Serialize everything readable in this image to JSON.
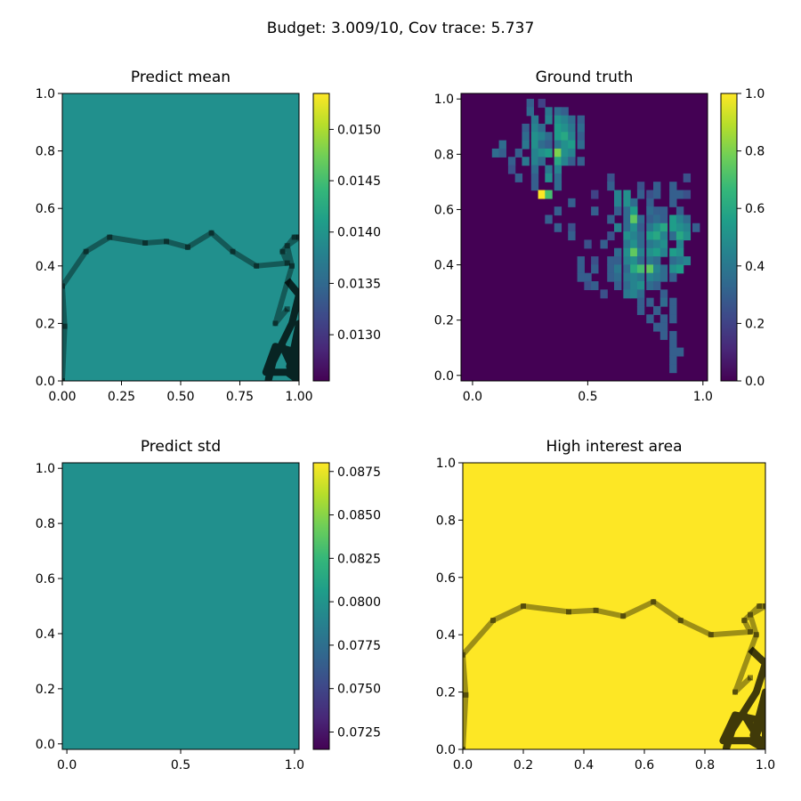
{
  "suptitle": "Budget: 3.009/10,  Cov trace: 5.737",
  "colormap": [
    "#440154",
    "#482878",
    "#3e4989",
    "#31688e",
    "#26828e",
    "#1f9e89",
    "#35b779",
    "#6ece58",
    "#b5de2b",
    "#fde725"
  ],
  "chart_data": [
    {
      "type": "heatmap",
      "title": "Predict mean",
      "fill_color": "#21908d",
      "xlim": [
        0,
        1
      ],
      "ylim": [
        0,
        1
      ],
      "xticks": [
        "0.00",
        "0.25",
        "0.50",
        "0.75",
        "1.00"
      ],
      "yticks": [
        "0.0",
        "0.2",
        "0.4",
        "0.6",
        "0.8",
        "1.0"
      ],
      "colorbar": {
        "range": [
          0.01255,
          0.01535
        ],
        "ticks": [
          "0.0130",
          "0.0135",
          "0.0140",
          "0.0145",
          "0.0150"
        ]
      },
      "path_overlay": true
    },
    {
      "type": "heatmap",
      "title": "Ground truth",
      "grid": [
        32,
        32
      ],
      "xlim": [
        -0.05,
        1.02
      ],
      "ylim": [
        -0.02,
        1.02
      ],
      "xticks": [
        "0.0",
        "0.5",
        "1.0"
      ],
      "yticks": [
        "0.0",
        "0.2",
        "0.4",
        "0.6",
        "0.8",
        "1.0"
      ],
      "colorbar": {
        "range": [
          0,
          1
        ],
        "ticks": [
          "0.0",
          "0.2",
          "0.4",
          "0.6",
          "0.8",
          "1.0"
        ]
      },
      "cells": [
        [
          0.25,
          0.985,
          0.3
        ],
        [
          0.3,
          0.985,
          0.2
        ],
        [
          0.25,
          0.955,
          0.35
        ],
        [
          0.33,
          0.955,
          0.4
        ],
        [
          0.37,
          0.955,
          0.35
        ],
        [
          0.4,
          0.955,
          0.3
        ],
        [
          0.27,
          0.925,
          0.4
        ],
        [
          0.33,
          0.925,
          0.45
        ],
        [
          0.37,
          0.925,
          0.5
        ],
        [
          0.4,
          0.925,
          0.45
        ],
        [
          0.43,
          0.925,
          0.35
        ],
        [
          0.47,
          0.925,
          0.3
        ],
        [
          0.23,
          0.895,
          0.3
        ],
        [
          0.27,
          0.895,
          0.45
        ],
        [
          0.3,
          0.895,
          0.35
        ],
        [
          0.37,
          0.895,
          0.55
        ],
        [
          0.4,
          0.895,
          0.5
        ],
        [
          0.43,
          0.895,
          0.4
        ],
        [
          0.47,
          0.895,
          0.35
        ],
        [
          0.23,
          0.865,
          0.35
        ],
        [
          0.27,
          0.865,
          0.5
        ],
        [
          0.3,
          0.865,
          0.45
        ],
        [
          0.33,
          0.865,
          0.35
        ],
        [
          0.37,
          0.865,
          0.55
        ],
        [
          0.4,
          0.865,
          0.6
        ],
        [
          0.43,
          0.865,
          0.45
        ],
        [
          0.47,
          0.865,
          0.3
        ],
        [
          0.13,
          0.835,
          0.35
        ],
        [
          0.23,
          0.835,
          0.4
        ],
        [
          0.27,
          0.835,
          0.5
        ],
        [
          0.3,
          0.835,
          0.35
        ],
        [
          0.33,
          0.835,
          0.3
        ],
        [
          0.37,
          0.835,
          0.4
        ],
        [
          0.4,
          0.835,
          0.5
        ],
        [
          0.43,
          0.835,
          0.55
        ],
        [
          0.47,
          0.835,
          0.35
        ],
        [
          0.1,
          0.805,
          0.35
        ],
        [
          0.13,
          0.805,
          0.3
        ],
        [
          0.2,
          0.805,
          0.3
        ],
        [
          0.27,
          0.805,
          0.45
        ],
        [
          0.3,
          0.805,
          0.5
        ],
        [
          0.33,
          0.805,
          0.55
        ],
        [
          0.37,
          0.805,
          0.8
        ],
        [
          0.4,
          0.805,
          0.5
        ],
        [
          0.43,
          0.805,
          0.45
        ],
        [
          0.17,
          0.775,
          0.3
        ],
        [
          0.23,
          0.775,
          0.4
        ],
        [
          0.27,
          0.775,
          0.45
        ],
        [
          0.3,
          0.775,
          0.35
        ],
        [
          0.37,
          0.775,
          0.6
        ],
        [
          0.4,
          0.775,
          0.45
        ],
        [
          0.43,
          0.775,
          0.3
        ],
        [
          0.47,
          0.775,
          0.3
        ],
        [
          0.17,
          0.745,
          0.25
        ],
        [
          0.27,
          0.745,
          0.35
        ],
        [
          0.33,
          0.745,
          0.4
        ],
        [
          0.37,
          0.745,
          0.45
        ],
        [
          0.2,
          0.715,
          0.3
        ],
        [
          0.27,
          0.715,
          0.3
        ],
        [
          0.33,
          0.715,
          0.5
        ],
        [
          0.37,
          0.715,
          0.35
        ],
        [
          0.6,
          0.715,
          0.25
        ],
        [
          0.93,
          0.715,
          0.25
        ],
        [
          0.27,
          0.685,
          0.3
        ],
        [
          0.37,
          0.685,
          0.35
        ],
        [
          0.6,
          0.685,
          0.3
        ],
        [
          0.73,
          0.685,
          0.25
        ],
        [
          0.8,
          0.685,
          0.3
        ],
        [
          0.87,
          0.685,
          0.3
        ],
        [
          0.3,
          0.655,
          1.0
        ],
        [
          0.33,
          0.655,
          0.7
        ],
        [
          0.53,
          0.655,
          0.2
        ],
        [
          0.63,
          0.655,
          0.45
        ],
        [
          0.67,
          0.655,
          0.5
        ],
        [
          0.73,
          0.655,
          0.3
        ],
        [
          0.77,
          0.655,
          0.25
        ],
        [
          0.8,
          0.655,
          0.3
        ],
        [
          0.87,
          0.655,
          0.3
        ],
        [
          0.9,
          0.655,
          0.3
        ],
        [
          0.93,
          0.655,
          0.25
        ],
        [
          0.43,
          0.625,
          0.3
        ],
        [
          0.63,
          0.625,
          0.45
        ],
        [
          0.67,
          0.625,
          0.5
        ],
        [
          0.7,
          0.625,
          0.35
        ],
        [
          0.77,
          0.625,
          0.3
        ],
        [
          0.87,
          0.625,
          0.3
        ],
        [
          0.37,
          0.595,
          0.3
        ],
        [
          0.53,
          0.595,
          0.3
        ],
        [
          0.63,
          0.595,
          0.3
        ],
        [
          0.67,
          0.595,
          0.35
        ],
        [
          0.7,
          0.595,
          0.55
        ],
        [
          0.77,
          0.595,
          0.35
        ],
        [
          0.8,
          0.595,
          0.3
        ],
        [
          0.83,
          0.595,
          0.3
        ],
        [
          0.9,
          0.595,
          0.3
        ],
        [
          0.33,
          0.565,
          0.3
        ],
        [
          0.6,
          0.565,
          0.3
        ],
        [
          0.67,
          0.565,
          0.35
        ],
        [
          0.7,
          0.565,
          0.75
        ],
        [
          0.73,
          0.565,
          0.35
        ],
        [
          0.77,
          0.565,
          0.3
        ],
        [
          0.8,
          0.565,
          0.35
        ],
        [
          0.83,
          0.565,
          0.3
        ],
        [
          0.87,
          0.565,
          0.55
        ],
        [
          0.9,
          0.565,
          0.45
        ],
        [
          0.93,
          0.565,
          0.35
        ],
        [
          0.37,
          0.535,
          0.3
        ],
        [
          0.43,
          0.535,
          0.25
        ],
        [
          0.63,
          0.535,
          0.45
        ],
        [
          0.67,
          0.535,
          0.35
        ],
        [
          0.7,
          0.535,
          0.5
        ],
        [
          0.73,
          0.535,
          0.3
        ],
        [
          0.77,
          0.535,
          0.4
        ],
        [
          0.8,
          0.535,
          0.5
        ],
        [
          0.83,
          0.535,
          0.6
        ],
        [
          0.87,
          0.535,
          0.55
        ],
        [
          0.9,
          0.535,
          0.5
        ],
        [
          0.93,
          0.535,
          0.45
        ],
        [
          0.97,
          0.535,
          0.3
        ],
        [
          0.43,
          0.505,
          0.3
        ],
        [
          0.6,
          0.505,
          0.25
        ],
        [
          0.67,
          0.505,
          0.5
        ],
        [
          0.7,
          0.505,
          0.45
        ],
        [
          0.73,
          0.505,
          0.35
        ],
        [
          0.77,
          0.505,
          0.55
        ],
        [
          0.8,
          0.505,
          0.6
        ],
        [
          0.83,
          0.505,
          0.45
        ],
        [
          0.87,
          0.505,
          0.35
        ],
        [
          0.9,
          0.505,
          0.6
        ],
        [
          0.93,
          0.505,
          0.5
        ],
        [
          0.5,
          0.475,
          0.25
        ],
        [
          0.57,
          0.475,
          0.3
        ],
        [
          0.67,
          0.475,
          0.4
        ],
        [
          0.7,
          0.475,
          0.5
        ],
        [
          0.73,
          0.475,
          0.35
        ],
        [
          0.77,
          0.475,
          0.4
        ],
        [
          0.8,
          0.475,
          0.45
        ],
        [
          0.83,
          0.475,
          0.5
        ],
        [
          0.9,
          0.475,
          0.45
        ],
        [
          0.63,
          0.445,
          0.35
        ],
        [
          0.67,
          0.445,
          0.5
        ],
        [
          0.7,
          0.445,
          0.75
        ],
        [
          0.73,
          0.445,
          0.45
        ],
        [
          0.77,
          0.445,
          0.5
        ],
        [
          0.8,
          0.445,
          0.55
        ],
        [
          0.83,
          0.445,
          0.45
        ],
        [
          0.87,
          0.445,
          0.55
        ],
        [
          0.9,
          0.445,
          0.5
        ],
        [
          0.47,
          0.415,
          0.3
        ],
        [
          0.53,
          0.415,
          0.25
        ],
        [
          0.6,
          0.415,
          0.3
        ],
        [
          0.63,
          0.415,
          0.3
        ],
        [
          0.67,
          0.415,
          0.45
        ],
        [
          0.7,
          0.415,
          0.5
        ],
        [
          0.73,
          0.415,
          0.35
        ],
        [
          0.77,
          0.415,
          0.4
        ],
        [
          0.8,
          0.415,
          0.35
        ],
        [
          0.87,
          0.415,
          0.35
        ],
        [
          0.9,
          0.415,
          0.4
        ],
        [
          0.93,
          0.415,
          0.45
        ],
        [
          0.47,
          0.385,
          0.3
        ],
        [
          0.53,
          0.385,
          0.3
        ],
        [
          0.6,
          0.385,
          0.3
        ],
        [
          0.63,
          0.385,
          0.4
        ],
        [
          0.67,
          0.385,
          0.35
        ],
        [
          0.7,
          0.385,
          0.6
        ],
        [
          0.73,
          0.385,
          0.7
        ],
        [
          0.77,
          0.385,
          0.75
        ],
        [
          0.8,
          0.385,
          0.45
        ],
        [
          0.83,
          0.385,
          0.35
        ],
        [
          0.87,
          0.385,
          0.5
        ],
        [
          0.9,
          0.385,
          0.55
        ],
        [
          0.47,
          0.355,
          0.3
        ],
        [
          0.5,
          0.355,
          0.3
        ],
        [
          0.6,
          0.355,
          0.3
        ],
        [
          0.63,
          0.355,
          0.35
        ],
        [
          0.67,
          0.355,
          0.4
        ],
        [
          0.7,
          0.355,
          0.45
        ],
        [
          0.73,
          0.355,
          0.4
        ],
        [
          0.77,
          0.355,
          0.45
        ],
        [
          0.8,
          0.355,
          0.4
        ],
        [
          0.83,
          0.355,
          0.35
        ],
        [
          0.87,
          0.355,
          0.3
        ],
        [
          0.5,
          0.325,
          0.25
        ],
        [
          0.53,
          0.325,
          0.3
        ],
        [
          0.63,
          0.325,
          0.3
        ],
        [
          0.67,
          0.325,
          0.35
        ],
        [
          0.7,
          0.325,
          0.45
        ],
        [
          0.73,
          0.325,
          0.5
        ],
        [
          0.77,
          0.325,
          0.35
        ],
        [
          0.8,
          0.325,
          0.3
        ],
        [
          0.57,
          0.295,
          0.25
        ],
        [
          0.67,
          0.295,
          0.4
        ],
        [
          0.7,
          0.295,
          0.45
        ],
        [
          0.73,
          0.295,
          0.35
        ],
        [
          0.83,
          0.295,
          0.3
        ],
        [
          0.73,
          0.265,
          0.3
        ],
        [
          0.77,
          0.265,
          0.3
        ],
        [
          0.83,
          0.265,
          0.35
        ],
        [
          0.87,
          0.265,
          0.3
        ],
        [
          0.73,
          0.235,
          0.3
        ],
        [
          0.8,
          0.235,
          0.3
        ],
        [
          0.87,
          0.235,
          0.3
        ],
        [
          0.77,
          0.205,
          0.3
        ],
        [
          0.83,
          0.205,
          0.3
        ],
        [
          0.87,
          0.205,
          0.3
        ],
        [
          0.8,
          0.175,
          0.3
        ],
        [
          0.83,
          0.175,
          0.3
        ],
        [
          0.83,
          0.145,
          0.3
        ],
        [
          0.87,
          0.145,
          0.3
        ],
        [
          0.87,
          0.115,
          0.3
        ],
        [
          0.87,
          0.085,
          0.3
        ],
        [
          0.9,
          0.085,
          0.3
        ],
        [
          0.87,
          0.055,
          0.3
        ],
        [
          0.87,
          0.025,
          0.3
        ]
      ]
    },
    {
      "type": "heatmap",
      "title": "Predict std",
      "fill_color": "#21908d",
      "xlim": [
        -0.02,
        1.02
      ],
      "ylim": [
        -0.02,
        1.02
      ],
      "xticks": [
        "0.0",
        "0.5",
        "1.0"
      ],
      "yticks": [
        "0.0",
        "0.2",
        "0.4",
        "0.6",
        "0.8",
        "1.0"
      ],
      "colorbar": {
        "range": [
          0.0715,
          0.088
        ],
        "ticks": [
          "0.0725",
          "0.0750",
          "0.0775",
          "0.0800",
          "0.0825",
          "0.0850",
          "0.0875"
        ]
      },
      "path_overlay": false
    },
    {
      "type": "heatmap",
      "title": "High interest area",
      "fill_color": "#fde725",
      "xlim": [
        0,
        1
      ],
      "ylim": [
        0,
        1
      ],
      "xticks": [
        "0.0",
        "0.2",
        "0.4",
        "0.6",
        "0.8",
        "1.0"
      ],
      "yticks": [
        "0.0",
        "0.2",
        "0.4",
        "0.6",
        "0.8",
        "1.0"
      ],
      "path_overlay": true
    }
  ],
  "path": {
    "thin": [
      [
        0.0,
        0.0
      ],
      [
        0.01,
        0.19
      ],
      [
        0.0,
        0.33
      ],
      [
        0.1,
        0.45
      ],
      [
        0.2,
        0.5
      ],
      [
        0.35,
        0.48
      ],
      [
        0.44,
        0.485
      ],
      [
        0.53,
        0.465
      ],
      [
        0.63,
        0.515
      ],
      [
        0.72,
        0.45
      ],
      [
        0.82,
        0.4
      ],
      [
        0.95,
        0.41
      ],
      [
        0.93,
        0.45
      ],
      [
        0.98,
        0.5
      ],
      [
        1.0,
        0.5
      ],
      [
        0.95,
        0.47
      ],
      [
        0.97,
        0.4
      ],
      [
        0.9,
        0.2
      ],
      [
        0.95,
        0.25
      ]
    ],
    "thick": [
      [
        0.95,
        0.35
      ],
      [
        1.0,
        0.3
      ],
      [
        0.97,
        0.2
      ],
      [
        0.88,
        0.05
      ],
      [
        0.87,
        0.0
      ],
      [
        0.9,
        0.1
      ],
      [
        0.93,
        0.12
      ],
      [
        0.97,
        0.05
      ],
      [
        0.99,
        0.1
      ],
      [
        0.9,
        0.12
      ],
      [
        0.86,
        0.03
      ],
      [
        0.95,
        0.03
      ],
      [
        1.0,
        0.0
      ],
      [
        1.0,
        0.2
      ],
      [
        0.98,
        0.12
      ],
      [
        0.96,
        0.05
      ],
      [
        1.0,
        0.02
      ]
    ]
  }
}
